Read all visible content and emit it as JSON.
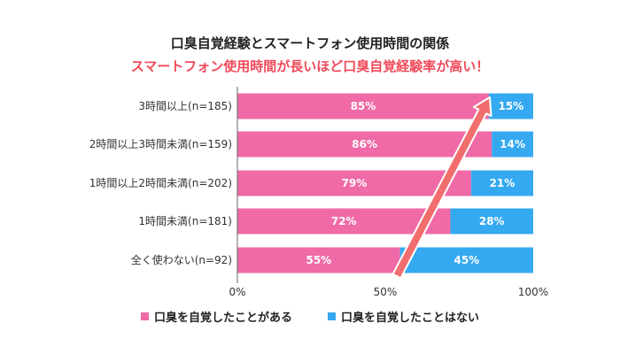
{
  "title": "口臭自覚経験とスマートフォン使用時間の関係",
  "subtitle": "スマートフォン使用時間が長いほど口臭自覚経験率が高い！",
  "colors": {
    "yes": "#ef6aa7",
    "no": "#35a9f0",
    "subtitle": "#f04a5a",
    "arrow": "#f26d6d",
    "axis": "#666666",
    "text": "#333333"
  },
  "chart_data": {
    "type": "bar",
    "orientation": "horizontal",
    "stacked": true,
    "percent": true,
    "categories": [
      "3時間以上(n=185)",
      "2時間以上3時間未満(n=159)",
      "1時間以上2時間未満(n=202)",
      "1時間未満(n=181)",
      "全く使わない(n=92)"
    ],
    "series": [
      {
        "name": "口臭を自覚したことがある",
        "values": [
          85,
          86,
          79,
          72,
          55
        ],
        "labels": [
          "85%",
          "86%",
          "79%",
          "72%",
          "55%"
        ]
      },
      {
        "name": "口臭を自覚したことはない",
        "values": [
          15,
          14,
          21,
          28,
          45
        ],
        "labels": [
          "15%",
          "14%",
          "21%",
          "28%",
          "45%"
        ]
      }
    ],
    "xlim": [
      0,
      100
    ],
    "xticks": [
      "0%",
      "50%",
      "100%"
    ],
    "annotation": "upward-arrow",
    "legend": "bottom"
  }
}
